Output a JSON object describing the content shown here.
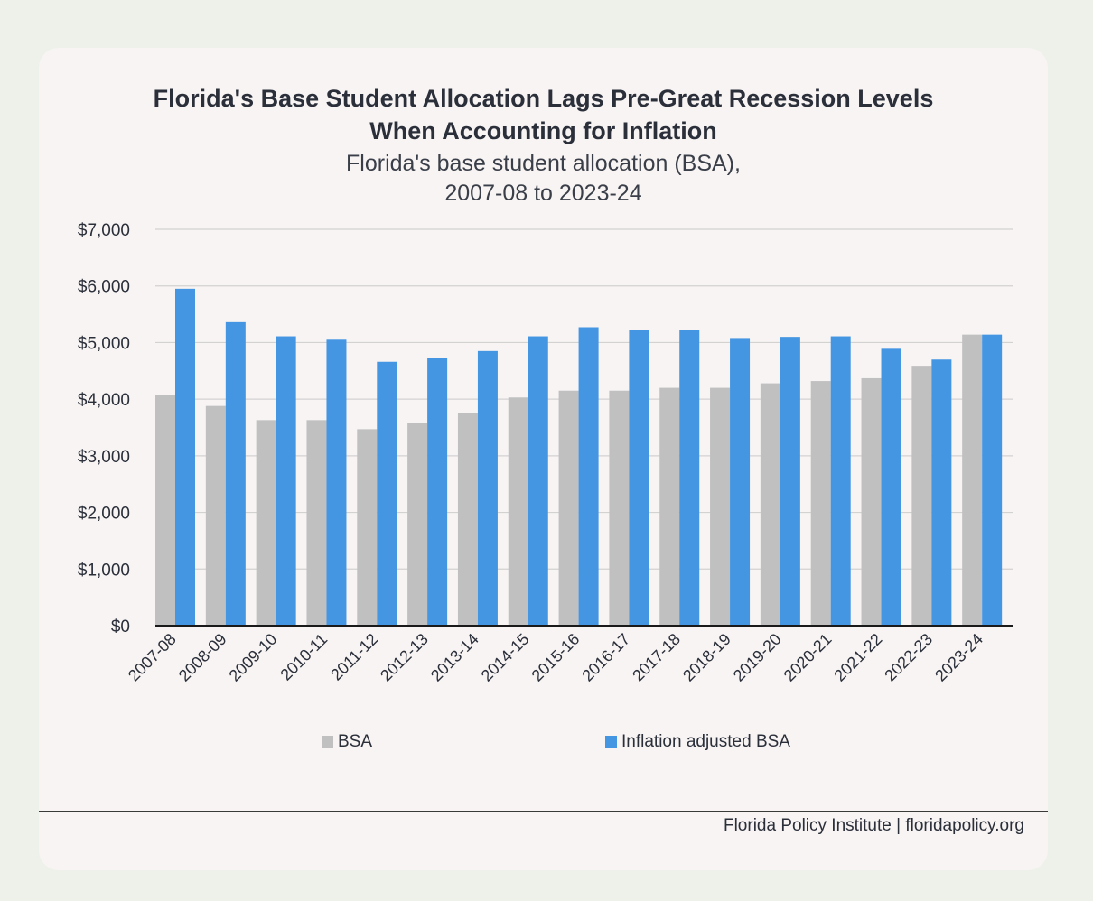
{
  "chart_data": {
    "type": "bar",
    "title_lines": [
      "Florida's Base Student Allocation Lags Pre-Great Recession Levels",
      "When Accounting for Inflation"
    ],
    "subtitle_lines": [
      "Florida's base student allocation (BSA),",
      "2007-08 to 2023-24"
    ],
    "categories": [
      "2007-08",
      "2008-09",
      "2009-10",
      "2010-11",
      "2011-12",
      "2012-13",
      "2013-14",
      "2014-15",
      "2015-16",
      "2016-17",
      "2017-18",
      "2018-19",
      "2019-20",
      "2020-21",
      "2021-22",
      "2022-23",
      "2023-24"
    ],
    "series": [
      {
        "name": "BSA",
        "color": "#c0c0c0",
        "values": [
          4070,
          3880,
          3630,
          3630,
          3470,
          3580,
          3750,
          4030,
          4150,
          4150,
          4200,
          4200,
          4280,
          4320,
          4370,
          4590,
          5140
        ]
      },
      {
        "name": "Inflation adjusted BSA",
        "color": "#4596e2",
        "values": [
          5950,
          5360,
          5110,
          5050,
          4660,
          4730,
          4850,
          5110,
          5270,
          5230,
          5220,
          5080,
          5100,
          5110,
          4890,
          4700,
          5140
        ]
      }
    ],
    "yticks": [
      "$0",
      "$1,000",
      "$2,000",
      "$3,000",
      "$4,000",
      "$5,000",
      "$6,000",
      "$7,000"
    ],
    "ylim": [
      0,
      7000
    ],
    "grid": true,
    "legend_position": "bottom"
  },
  "source": "Florida Policy Institute | floridapolicy.org"
}
